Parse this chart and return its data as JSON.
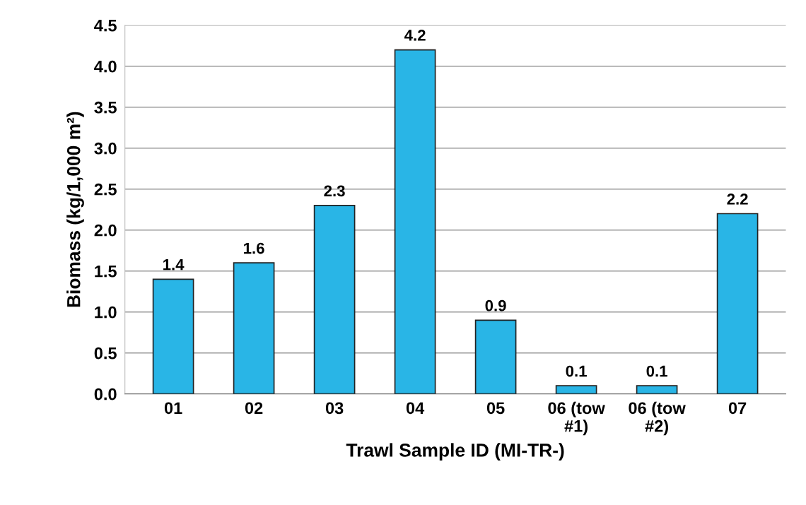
{
  "chart_data": {
    "type": "bar",
    "xlabel": "Trawl Sample ID (MI-TR-)",
    "ylabel": "Biomass (kg/1,000 m²)",
    "categories": [
      "01",
      "02",
      "03",
      "04",
      "05",
      "06 (tow\n#1)",
      "06 (tow\n#2)",
      "07"
    ],
    "values": [
      1.4,
      1.6,
      2.3,
      4.2,
      0.9,
      0.1,
      0.1,
      2.2
    ],
    "color": "#29b5e6",
    "ylim": [
      0,
      4.5
    ],
    "yticks": [
      {
        "value": 0,
        "label": "0.0"
      },
      {
        "value": 0.5,
        "label": "0.5"
      },
      {
        "value": 1,
        "label": "1.0"
      },
      {
        "value": 1.5,
        "label": "1.5"
      },
      {
        "value": 2,
        "label": "2.0"
      },
      {
        "value": 2.5,
        "label": "2.5"
      },
      {
        "value": 3,
        "label": "3.0"
      },
      {
        "value": 3.5,
        "label": "3.5"
      },
      {
        "value": 4,
        "label": "4.0"
      },
      {
        "value": 4.5,
        "label": "4.5"
      }
    ],
    "grid": "y",
    "data_labels": true
  }
}
